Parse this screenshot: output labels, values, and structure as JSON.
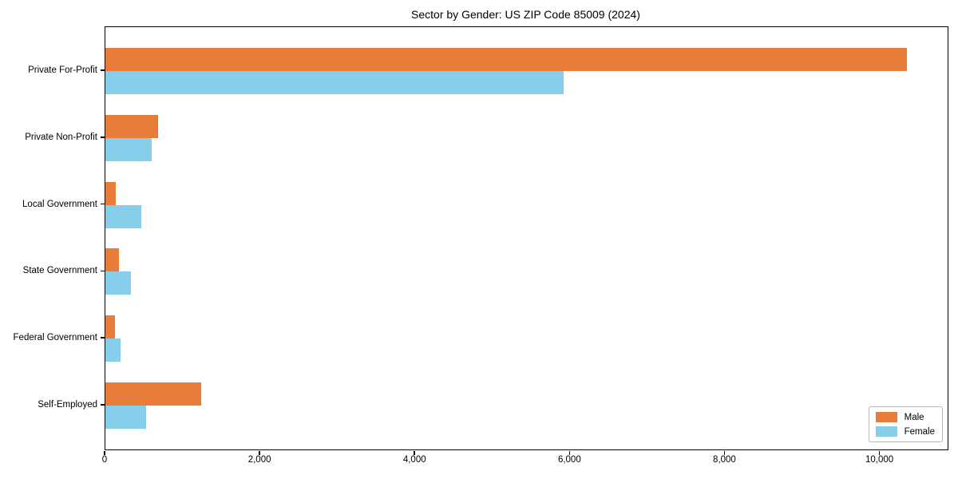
{
  "chart_data": {
    "type": "bar",
    "orientation": "horizontal",
    "title": "Sector by Gender: US ZIP Code 85009 (2024)",
    "xlabel": "",
    "ylabel": "",
    "categories": [
      "Private For-Profit",
      "Private Non-Profit",
      "Local Government",
      "State Government",
      "Federal Government",
      "Self-Employed"
    ],
    "series": [
      {
        "name": "Male",
        "color": "#E87D3B",
        "values": [
          10340,
          680,
          135,
          175,
          120,
          1240
        ]
      },
      {
        "name": "Female",
        "color": "#87CEEB",
        "values": [
          5910,
          600,
          465,
          330,
          195,
          530
        ]
      }
    ],
    "xlim": [
      0,
      10870
    ],
    "xticks": {
      "values": [
        0,
        2000,
        4000,
        6000,
        8000,
        10000
      ],
      "labels": [
        "0",
        "2,000",
        "4,000",
        "6,000",
        "8,000",
        "10,000"
      ]
    },
    "grid": false,
    "legend_position": "lower right"
  }
}
